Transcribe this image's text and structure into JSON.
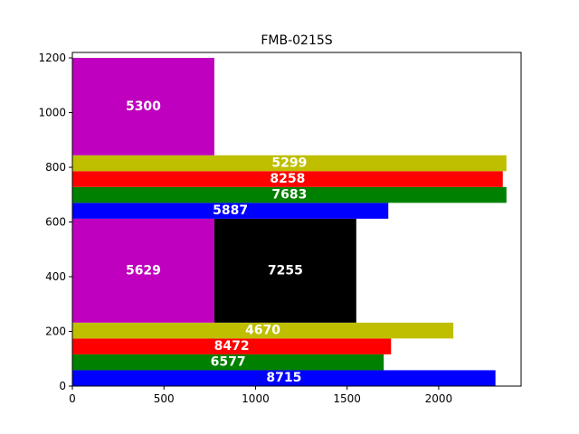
{
  "chart_data": {
    "type": "bar",
    "title": "FMB-0215S",
    "xlabel": "",
    "ylabel": "",
    "xlim": [
      0,
      2450
    ],
    "ylim": [
      0,
      1220
    ],
    "x_ticks": [
      0,
      500,
      1000,
      1500,
      2000
    ],
    "y_ticks": [
      0,
      200,
      400,
      600,
      800,
      1000,
      1200
    ],
    "grid": false,
    "legend": "none",
    "bars": [
      {
        "label": "8715",
        "x0": 0,
        "x1": 2310,
        "y0": 0,
        "y1": 58,
        "color": "#0000ff"
      },
      {
        "label": "6577",
        "x0": 0,
        "x1": 1700,
        "y0": 58,
        "y1": 116,
        "color": "#008000"
      },
      {
        "label": "8472",
        "x0": 0,
        "x1": 1740,
        "y0": 116,
        "y1": 174,
        "color": "#ff0000"
      },
      {
        "label": "4670",
        "x0": 0,
        "x1": 2080,
        "y0": 174,
        "y1": 232,
        "color": "#bfbf00"
      },
      {
        "label": "5629",
        "x0": 0,
        "x1": 775,
        "y0": 232,
        "y1": 612,
        "color": "#bf00bf"
      },
      {
        "label": "7255",
        "x0": 775,
        "x1": 1550,
        "y0": 232,
        "y1": 612,
        "color": "#000000"
      },
      {
        "label": "5887",
        "x0": 0,
        "x1": 1725,
        "y0": 612,
        "y1": 670,
        "color": "#0000ff"
      },
      {
        "label": "7683",
        "x0": 0,
        "x1": 2370,
        "y0": 670,
        "y1": 728,
        "color": "#008000"
      },
      {
        "label": "8258",
        "x0": 0,
        "x1": 2350,
        "y0": 728,
        "y1": 786,
        "color": "#ff0000"
      },
      {
        "label": "5299",
        "x0": 0,
        "x1": 2370,
        "y0": 786,
        "y1": 844,
        "color": "#bfbf00"
      },
      {
        "label": "5300",
        "x0": 0,
        "x1": 775,
        "y0": 844,
        "y1": 1200,
        "color": "#bf00bf"
      }
    ]
  }
}
